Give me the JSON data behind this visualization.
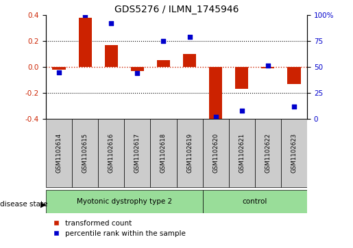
{
  "title": "GDS5276 / ILMN_1745946",
  "categories": [
    "GSM1102614",
    "GSM1102615",
    "GSM1102616",
    "GSM1102617",
    "GSM1102618",
    "GSM1102619",
    "GSM1102620",
    "GSM1102621",
    "GSM1102622",
    "GSM1102623"
  ],
  "red_values": [
    -0.02,
    0.38,
    0.17,
    -0.03,
    0.05,
    0.1,
    -0.4,
    -0.17,
    -0.01,
    -0.13
  ],
  "blue_values": [
    45,
    100,
    92,
    44,
    75,
    79,
    2,
    8,
    51,
    12
  ],
  "groups": [
    {
      "label": "Myotonic dystrophy type 2",
      "start": 0,
      "end": 5
    },
    {
      "label": "control",
      "start": 6,
      "end": 9
    }
  ],
  "disease_state_label": "disease state",
  "ylim_left": [
    -0.4,
    0.4
  ],
  "ylim_right": [
    0,
    100
  ],
  "yticks_left": [
    -0.4,
    -0.2,
    0.0,
    0.2,
    0.4
  ],
  "yticks_right": [
    0,
    25,
    50,
    75,
    100
  ],
  "ytick_labels_right": [
    "0",
    "25",
    "50",
    "75",
    "100%"
  ],
  "red_color": "#cc2200",
  "blue_color": "#0000cc",
  "group_bg_color": "#99dd99",
  "label_bg_color": "#cccccc",
  "legend_red_label": "transformed count",
  "legend_blue_label": "percentile rank within the sample",
  "bar_width": 0.5
}
